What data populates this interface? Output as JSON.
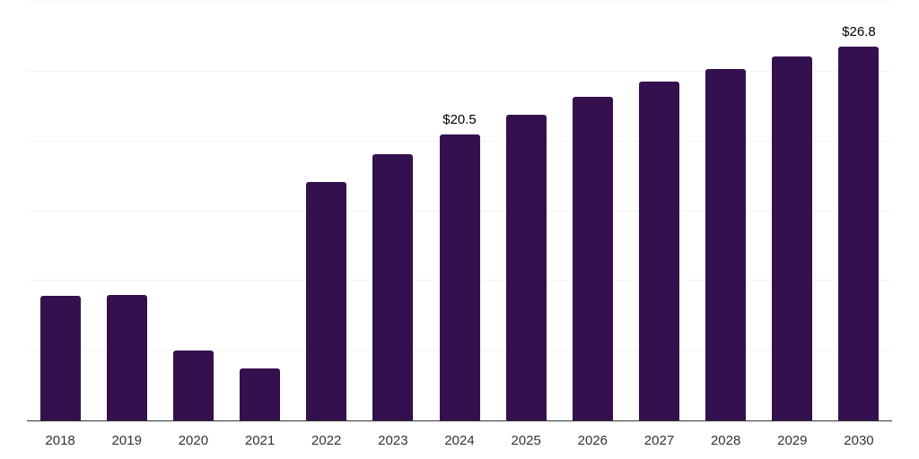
{
  "chart_data": {
    "type": "bar",
    "title": "",
    "xlabel": "",
    "ylabel": "",
    "categories": [
      "2018",
      "2019",
      "2020",
      "2021",
      "2022",
      "2023",
      "2024",
      "2025",
      "2026",
      "2027",
      "2028",
      "2029",
      "2030"
    ],
    "values": [
      8.9,
      9.0,
      5.0,
      3.7,
      17.1,
      19.1,
      20.5,
      21.9,
      23.2,
      24.3,
      25.2,
      26.1,
      26.8
    ],
    "annotations": [
      {
        "category": "2024",
        "text": "$20.5"
      },
      {
        "category": "2030",
        "text": "$26.8"
      }
    ],
    "ylim": [
      0,
      30
    ],
    "grid_step": 5,
    "grid": true,
    "legend": false,
    "y_axis_labels_shown": false,
    "colors": {
      "bar": "#34114e",
      "gridline": "#f4f4f4",
      "axis_line": "#333333",
      "tick_label": "#333333",
      "annotation": "#000000",
      "background": "#ffffff"
    }
  }
}
